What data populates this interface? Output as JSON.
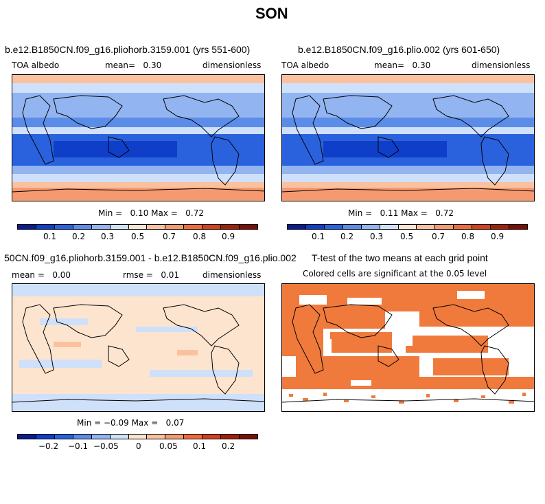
{
  "season": "SON",
  "colors": {
    "albedo_scale": [
      "#081d8f",
      "#0f3fc8",
      "#2a62de",
      "#5b8ce8",
      "#92b4f0",
      "#cfe0fb",
      "#fde4cf",
      "#fbc19e",
      "#f59a70",
      "#ef6a3a",
      "#d2401c",
      "#a0200c",
      "#7a1004"
    ],
    "diff_scale": [
      "#081d8f",
      "#0f3fc8",
      "#2a62de",
      "#5b8ce8",
      "#92b4f0",
      "#cfe0fb",
      "#fde4cf",
      "#fbc19e",
      "#f59a70",
      "#ef6a3a",
      "#d2401c",
      "#a0200c",
      "#7a1004"
    ],
    "significant": "#f07a3c"
  },
  "panels": {
    "p1": {
      "title": "b.e12.B1850CN.f09_g16.pliohorb.3159.001 (yrs 551-600)",
      "left": "TOA albedo",
      "mid": "mean=   0.30",
      "right": "dimensionless",
      "minmax": "Min =   0.10 Max =   0.72"
    },
    "p2": {
      "title": "b.e12.B1850CN.f09_g16.plio.002 (yrs 601-650)",
      "left": "TOA albedo",
      "mid": "mean=   0.30",
      "right": "dimensionless",
      "minmax": "Min =   0.11 Max =   0.72"
    },
    "p3": {
      "title": "50CN.f09_g16.pliohorb.3159.001 - b.e12.B1850CN.f09_g16.plio.002",
      "left": "mean =   0.00",
      "mid": "rmse =   0.01",
      "right": "dimensionless",
      "minmax": "Min = −0.09 Max =   0.07"
    },
    "p4": {
      "title": "T-test of the two means at each grid point",
      "subtitle": "Colored cells are significant at the 0.05 level"
    }
  },
  "colorbar_ticks_albedo": [
    "0.1",
    "0.2",
    "0.3",
    "0.5",
    "0.7",
    "0.8",
    "0.9"
  ],
  "colorbar_ticks_diff": [
    "−0.2",
    "−0.1",
    "−0.05",
    "0",
    "0.05",
    "0.1",
    "0.2"
  ],
  "chart_data": [
    {
      "type": "heatmap",
      "title": "b.e12.B1850CN.f09_g16.pliohorb.3159.001 (yrs 551-600)",
      "variable": "TOA albedo",
      "units": "dimensionless",
      "mean": 0.3,
      "min": 0.1,
      "max": 0.72,
      "colorbar_levels": [
        0.1,
        0.2,
        0.3,
        0.5,
        0.7,
        0.8,
        0.9
      ]
    },
    {
      "type": "heatmap",
      "title": "b.e12.B1850CN.f09_g16.plio.002 (yrs 601-650)",
      "variable": "TOA albedo",
      "units": "dimensionless",
      "mean": 0.3,
      "min": 0.11,
      "max": 0.72,
      "colorbar_levels": [
        0.1,
        0.2,
        0.3,
        0.5,
        0.7,
        0.8,
        0.9
      ]
    },
    {
      "type": "heatmap",
      "title": "50CN.f09_g16.pliohorb.3159.001 - b.e12.B1850CN.f09_g16.plio.002",
      "units": "dimensionless",
      "mean": 0.0,
      "rmse": 0.01,
      "min": -0.09,
      "max": 0.07,
      "colorbar_levels": [
        -0.2,
        -0.1,
        -0.05,
        0,
        0.05,
        0.1,
        0.2
      ]
    },
    {
      "type": "heatmap",
      "title": "T-test of the two means at each grid point",
      "subtitle": "Colored cells are significant at the 0.05 level"
    }
  ]
}
